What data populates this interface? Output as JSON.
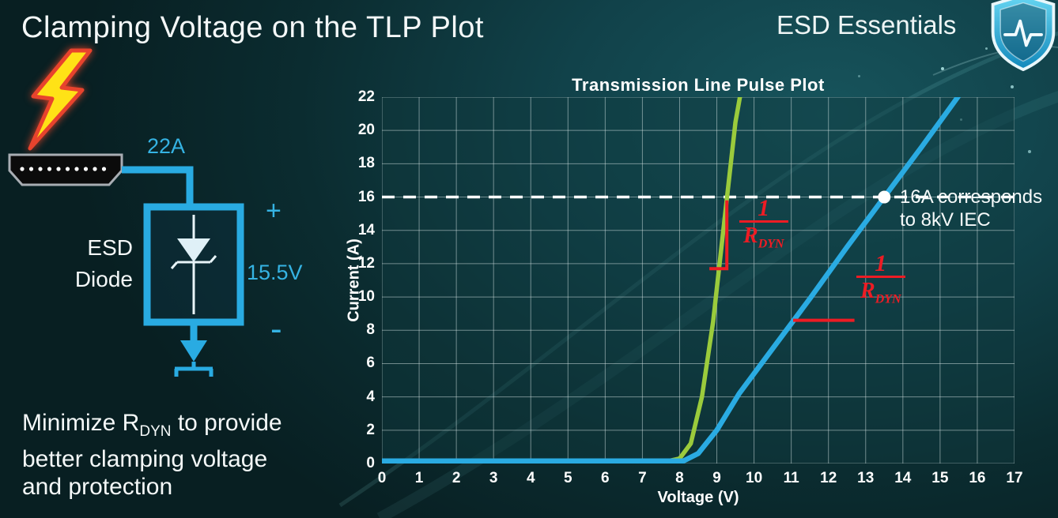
{
  "page": {
    "title": "Clamping Voltage on the TLP Plot",
    "brand": "ESD Essentials"
  },
  "diagram": {
    "surge_current": "22A",
    "plus": "+",
    "clamp_voltage": "15.5V",
    "minus": "-",
    "device_label_line1": "ESD",
    "device_label_line2": "Diode"
  },
  "caption": {
    "line1_pre": "Minimize R",
    "line1_sub": "DYN",
    "line1_post": " to provide",
    "line2": "better clamping voltage",
    "line3": "and protection"
  },
  "chart_data": {
    "type": "line",
    "title": "Transmission Line Pulse Plot",
    "xlabel": "Voltage (V)",
    "ylabel": "Current (A)",
    "xlim": [
      0,
      17
    ],
    "ylim": [
      0,
      22
    ],
    "x_ticks": [
      0,
      1,
      2,
      3,
      4,
      5,
      6,
      7,
      8,
      9,
      10,
      11,
      12,
      13,
      14,
      15,
      16,
      17
    ],
    "y_ticks": [
      0,
      2,
      4,
      6,
      8,
      10,
      12,
      14,
      16,
      18,
      20,
      22
    ],
    "grid": true,
    "legend": false,
    "series": [
      {
        "name": "green-curve-low-rdyn",
        "color": "#9bcb3c",
        "width": 5.5,
        "points": [
          [
            0,
            0.15
          ],
          [
            7.7,
            0.15
          ],
          [
            8.0,
            0.3
          ],
          [
            8.3,
            1.2
          ],
          [
            8.6,
            4.0
          ],
          [
            8.9,
            8.5
          ],
          [
            9.2,
            14.5
          ],
          [
            9.5,
            20.5
          ],
          [
            9.7,
            23
          ]
        ]
      },
      {
        "name": "blue-curve-high-rdyn",
        "color": "#2aabe2",
        "width": 6.5,
        "points": [
          [
            0,
            0.15
          ],
          [
            8.1,
            0.15
          ],
          [
            8.5,
            0.6
          ],
          [
            9.0,
            2.0
          ],
          [
            9.6,
            4.2
          ],
          [
            10.5,
            6.9
          ],
          [
            11.5,
            9.9
          ],
          [
            12.5,
            13.0
          ],
          [
            13.5,
            16.0
          ],
          [
            14.5,
            19.0
          ],
          [
            15.8,
            23
          ]
        ]
      }
    ],
    "refline": {
      "y": 16,
      "color": "#ffffff",
      "width": 3.5,
      "dash": [
        16,
        11
      ]
    },
    "marker": {
      "x": 13.5,
      "y": 16,
      "radius": 8,
      "color": "#ffffff",
      "label_line1": "16A corresponds",
      "label_line2": "to 8kV IEC"
    },
    "annotations": {
      "color": "#ed1c24",
      "fractions": [
        {
          "numerator": "1",
          "den_base": "R",
          "den_sub": "DYN"
        },
        {
          "numerator": "1",
          "den_base": "R",
          "den_sub": "DYN"
        }
      ],
      "segments": [
        {
          "points": [
            [
              8.8,
              11.7
            ],
            [
              9.27,
              11.7
            ],
            [
              9.27,
              15.8
            ]
          ]
        },
        {
          "points": [
            [
              11.05,
              8.6
            ],
            [
              12.7,
              8.6
            ]
          ]
        }
      ]
    }
  }
}
